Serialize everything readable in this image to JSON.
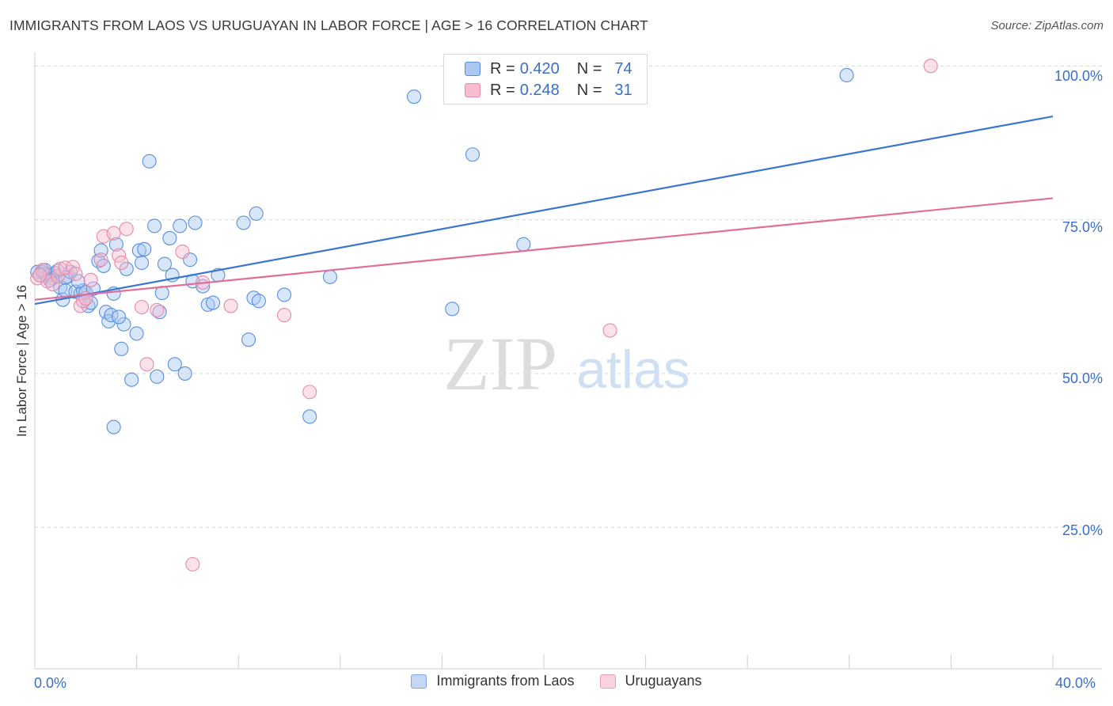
{
  "header": {
    "title": "IMMIGRANTS FROM LAOS VS URUGUAYAN IN LABOR FORCE | AGE > 16 CORRELATION CHART",
    "source": "Source: ZipAtlas.com"
  },
  "watermark": {
    "zip": "ZIP",
    "atlas": "atlas"
  },
  "legend_top": [
    {
      "r_label": "R =",
      "r_value": "0.420",
      "n_label": "N =",
      "n_value": "74"
    },
    {
      "r_label": "R =",
      "r_value": "0.248",
      "n_label": "N =",
      "n_value": "31"
    }
  ],
  "legend_bottom": [
    "Immigrants from Laos",
    "Uruguayans"
  ],
  "axis": {
    "ylabel": "In Labor Force | Age > 16",
    "x_left": "0.0%",
    "x_right": "40.0%",
    "y_ticks": [
      "100.0%",
      "75.0%",
      "50.0%",
      "25.0%"
    ]
  },
  "colors": {
    "blue_fill": "#a9c8f2",
    "blue_stroke": "#5b8fdc",
    "blue_line": "#3a76d0",
    "pink_fill": "#f6bcd0",
    "pink_stroke": "#e58aa8",
    "pink_line": "#e06f99",
    "tick_text": "#3a6fc8",
    "grid": "#d8d8d8"
  },
  "chart_data": {
    "type": "scatter",
    "title": "IMMIGRANTS FROM LAOS VS URUGUAYAN IN LABOR FORCE | AGE > 16 CORRELATION CHART",
    "xlabel": "",
    "ylabel": "In Labor Force | Age > 16",
    "xlim": [
      0,
      40
    ],
    "ylim": [
      2,
      103
    ],
    "y_ticks": [
      25,
      50,
      75,
      100
    ],
    "grid": true,
    "legend": "top-center",
    "series": [
      {
        "name": "Immigrants from Laos",
        "r": 0.42,
        "n": 74,
        "trend": {
          "x": [
            0,
            40
          ],
          "y": [
            61.3,
            91.8
          ]
        },
        "points": [
          [
            0.1,
            66.5
          ],
          [
            0.2,
            66.0
          ],
          [
            0.3,
            66.5
          ],
          [
            0.4,
            66.2
          ],
          [
            0.5,
            65.8
          ],
          [
            0.6,
            66.1
          ],
          [
            0.7,
            65.5
          ],
          [
            0.8,
            66.3
          ],
          [
            0.9,
            66.7
          ],
          [
            1.0,
            64.0
          ],
          [
            1.1,
            62.0
          ],
          [
            1.2,
            63.5
          ],
          [
            1.3,
            65.8
          ],
          [
            1.4,
            66.5
          ],
          [
            1.6,
            63.3
          ],
          [
            1.8,
            63.0
          ],
          [
            1.9,
            63.5
          ],
          [
            2.0,
            63.2
          ],
          [
            2.1,
            61.0
          ],
          [
            2.2,
            61.5
          ],
          [
            2.5,
            68.3
          ],
          [
            2.6,
            70.0
          ],
          [
            2.7,
            67.5
          ],
          [
            2.8,
            60.0
          ],
          [
            2.9,
            58.5
          ],
          [
            3.0,
            59.5
          ],
          [
            3.1,
            63.0
          ],
          [
            3.2,
            71.0
          ],
          [
            3.4,
            54.0
          ],
          [
            3.5,
            58.0
          ],
          [
            3.6,
            67.0
          ],
          [
            3.8,
            49.0
          ],
          [
            4.0,
            56.5
          ],
          [
            4.1,
            70.0
          ],
          [
            4.2,
            68.0
          ],
          [
            4.3,
            70.2
          ],
          [
            4.5,
            84.5
          ],
          [
            4.7,
            74.0
          ],
          [
            4.8,
            49.5
          ],
          [
            4.9,
            60.0
          ],
          [
            5.1,
            67.8
          ],
          [
            5.3,
            72.0
          ],
          [
            5.4,
            66.0
          ],
          [
            5.5,
            51.5
          ],
          [
            5.7,
            74.0
          ],
          [
            5.9,
            50.0
          ],
          [
            6.1,
            68.5
          ],
          [
            6.2,
            65.0
          ],
          [
            6.3,
            74.5
          ],
          [
            6.6,
            64.2
          ],
          [
            6.8,
            61.2
          ],
          [
            7.0,
            61.5
          ],
          [
            7.2,
            66.0
          ],
          [
            8.2,
            74.5
          ],
          [
            8.4,
            55.5
          ],
          [
            8.6,
            62.3
          ],
          [
            8.7,
            76.0
          ],
          [
            8.8,
            61.8
          ],
          [
            9.8,
            62.8
          ],
          [
            10.8,
            43.0
          ],
          [
            11.6,
            65.7
          ],
          [
            14.9,
            95.0
          ],
          [
            16.4,
            60.5
          ],
          [
            17.2,
            85.6
          ],
          [
            19.2,
            71.0
          ],
          [
            31.9,
            98.5
          ],
          [
            3.1,
            41.3
          ],
          [
            1.2,
            65.6
          ],
          [
            0.4,
            66.8
          ],
          [
            2.3,
            63.8
          ],
          [
            1.7,
            65.0
          ],
          [
            0.6,
            65.2
          ],
          [
            3.3,
            59.2
          ],
          [
            5.0,
            63.1
          ]
        ]
      },
      {
        "name": "Uruguayans",
        "r": 0.248,
        "n": 31,
        "trend": {
          "x": [
            0,
            40
          ],
          "y": [
            62.0,
            78.5
          ]
        },
        "points": [
          [
            0.1,
            65.5
          ],
          [
            0.3,
            66.8
          ],
          [
            0.5,
            65.0
          ],
          [
            0.7,
            64.5
          ],
          [
            0.9,
            65.8
          ],
          [
            1.0,
            67.0
          ],
          [
            1.2,
            67.2
          ],
          [
            1.5,
            67.3
          ],
          [
            1.6,
            66.2
          ],
          [
            1.8,
            61.0
          ],
          [
            1.9,
            61.8
          ],
          [
            2.2,
            65.2
          ],
          [
            2.6,
            68.5
          ],
          [
            2.7,
            72.3
          ],
          [
            3.1,
            72.8
          ],
          [
            3.3,
            69.2
          ],
          [
            3.4,
            68.0
          ],
          [
            3.6,
            73.5
          ],
          [
            4.2,
            60.8
          ],
          [
            4.4,
            51.5
          ],
          [
            4.8,
            60.3
          ],
          [
            5.8,
            69.8
          ],
          [
            6.2,
            19.0
          ],
          [
            6.6,
            64.8
          ],
          [
            7.7,
            61.0
          ],
          [
            9.8,
            59.5
          ],
          [
            10.8,
            47.0
          ],
          [
            22.6,
            57.0
          ],
          [
            35.2,
            100.0
          ],
          [
            0.2,
            66.0
          ],
          [
            2.0,
            62.2
          ]
        ]
      }
    ]
  }
}
